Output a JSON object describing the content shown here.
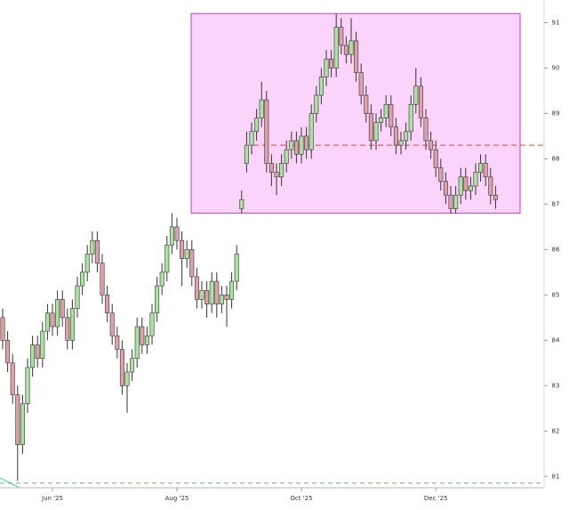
{
  "chart_data": {
    "type": "candlestick",
    "categories": [
      null,
      null,
      null,
      null,
      null,
      null,
      null,
      null,
      null,
      null,
      "Jun '25",
      null,
      null,
      null,
      null,
      null,
      null,
      null,
      null,
      null,
      null,
      null,
      null,
      null,
      null,
      null,
      null,
      null,
      null,
      null,
      null,
      null,
      null,
      null,
      null,
      "Aug '25",
      null,
      null,
      null,
      null,
      null,
      null,
      null,
      null,
      null,
      null,
      null,
      null,
      null,
      null,
      null,
      null,
      null,
      null,
      null,
      null,
      null,
      null,
      null,
      null,
      "Oct '25",
      null,
      null,
      null,
      null,
      null,
      null,
      null,
      null,
      null,
      null,
      null,
      null,
      null,
      null,
      null,
      null,
      null,
      null,
      null,
      null,
      null,
      null,
      null,
      null,
      null,
      null,
      "Dec '25",
      null,
      null,
      null,
      null,
      null,
      null,
      null,
      null,
      null,
      null,
      null,
      null
    ],
    "open": [
      84.5,
      84.0,
      83.5,
      82.8,
      81.7,
      82.6,
      83.4,
      83.9,
      83.6,
      84.2,
      84.6,
      84.3,
      84.9,
      84.5,
      84.0,
      84.7,
      85.2,
      85.5,
      85.9,
      86.2,
      85.7,
      85.0,
      84.6,
      84.1,
      83.8,
      83.0,
      83.3,
      83.6,
      84.3,
      83.9,
      84.1,
      84.6,
      85.2,
      85.5,
      86.1,
      86.5,
      86.2,
      85.8,
      86.0,
      85.4,
      84.9,
      85.1,
      84.8,
      85.3,
      84.8,
      85.0,
      84.9,
      85.3,
      86.9,
      87.9,
      88.3,
      88.6,
      88.9,
      89.3,
      87.9,
      87.7,
      87.6,
      87.9,
      88.2,
      88.4,
      88.1,
      88.5,
      88.2,
      89.0,
      89.4,
      89.8,
      90.2,
      90.0,
      90.9,
      90.5,
      90.3,
      90.6,
      89.9,
      89.4,
      89.0,
      88.4,
      88.8,
      88.9,
      89.2,
      88.7,
      88.3,
      88.4,
      88.6,
      89.2,
      89.6,
      88.9,
      88.4,
      88.2,
      87.8,
      87.5,
      87.2,
      86.9,
      87.2,
      87.6,
      87.3,
      87.4,
      87.7,
      87.9,
      87.6,
      87.2
    ],
    "high": [
      84.7,
      84.2,
      83.7,
      83.0,
      82.8,
      83.6,
      84.1,
      84.1,
      84.4,
      84.8,
      84.8,
      85.1,
      85.1,
      84.7,
      84.9,
      85.4,
      85.7,
      86.1,
      86.4,
      86.4,
      85.9,
      85.2,
      84.8,
      84.3,
      84.0,
      83.5,
      83.8,
      84.5,
      84.5,
      84.3,
      84.8,
      85.4,
      85.7,
      86.3,
      86.8,
      86.7,
      86.4,
      86.2,
      86.2,
      85.6,
      85.3,
      85.3,
      85.5,
      85.5,
      85.2,
      85.2,
      85.5,
      86.1,
      87.3,
      88.6,
      88.8,
      89.1,
      89.7,
      89.5,
      88.1,
      87.9,
      88.1,
      88.4,
      88.6,
      88.6,
      88.7,
      88.7,
      89.2,
      89.6,
      90.0,
      90.4,
      90.4,
      91.2,
      91.1,
      90.7,
      91.1,
      90.8,
      90.1,
      89.6,
      89.2,
      89.0,
      89.1,
      89.4,
      89.4,
      88.9,
      88.6,
      88.8,
      89.4,
      90.0,
      89.8,
      89.1,
      88.6,
      88.4,
      88.0,
      87.7,
      87.4,
      87.4,
      87.8,
      87.8,
      87.6,
      87.9,
      88.1,
      88.1,
      87.8,
      87.4
    ],
    "low": [
      83.8,
      83.3,
      82.6,
      80.9,
      81.5,
      82.4,
      83.2,
      83.4,
      83.4,
      84.0,
      84.1,
      84.1,
      84.3,
      83.8,
      83.8,
      84.5,
      85.0,
      85.3,
      85.7,
      85.5,
      84.8,
      84.4,
      83.9,
      83.6,
      82.8,
      82.4,
      83.1,
      83.4,
      83.7,
      83.7,
      83.9,
      84.4,
      85.0,
      85.3,
      85.9,
      86.0,
      85.2,
      85.6,
      85.2,
      84.7,
      84.7,
      84.5,
      84.6,
      84.5,
      84.6,
      84.3,
      84.7,
      85.1,
      86.8,
      87.7,
      88.1,
      88.4,
      88.7,
      87.7,
      87.4,
      87.2,
      87.4,
      87.7,
      88.0,
      87.9,
      87.9,
      88.0,
      88.0,
      88.8,
      89.2,
      89.6,
      89.8,
      89.8,
      90.3,
      90.1,
      90.1,
      89.7,
      89.2,
      88.8,
      88.2,
      88.2,
      88.6,
      88.7,
      88.5,
      88.1,
      88.1,
      88.2,
      88.4,
      89.0,
      88.7,
      88.2,
      88.0,
      87.6,
      87.3,
      87.0,
      86.8,
      86.8,
      87.0,
      87.1,
      87.1,
      87.2,
      87.5,
      87.4,
      87.0,
      86.9
    ],
    "close": [
      84.0,
      83.5,
      82.8,
      81.7,
      82.6,
      83.4,
      83.9,
      83.6,
      84.2,
      84.6,
      84.3,
      84.9,
      84.5,
      84.0,
      84.7,
      85.2,
      85.5,
      85.9,
      86.2,
      85.7,
      85.0,
      84.6,
      84.1,
      83.8,
      83.0,
      83.3,
      83.6,
      84.3,
      83.9,
      84.1,
      84.6,
      85.2,
      85.5,
      86.1,
      86.5,
      86.2,
      85.8,
      86.0,
      85.4,
      84.9,
      85.1,
      84.8,
      85.3,
      84.8,
      85.0,
      84.9,
      85.3,
      85.9,
      87.1,
      88.3,
      88.6,
      88.9,
      89.3,
      87.9,
      87.7,
      87.6,
      87.9,
      88.2,
      88.4,
      88.1,
      88.5,
      88.2,
      89.0,
      89.4,
      89.8,
      90.2,
      90.0,
      90.9,
      90.5,
      90.3,
      90.6,
      89.9,
      89.4,
      89.0,
      88.4,
      88.8,
      88.9,
      89.2,
      88.7,
      88.3,
      88.4,
      88.6,
      89.2,
      89.6,
      88.9,
      88.4,
      88.2,
      87.8,
      87.5,
      87.2,
      86.9,
      87.2,
      87.6,
      87.3,
      87.4,
      87.7,
      87.9,
      87.6,
      87.2,
      87.1
    ],
    "up_color": "#a8e4a0",
    "down_color": "#dfa0a8",
    "ylim": [
      80.75,
      91.5
    ],
    "yticks": [
      81,
      82,
      83,
      84,
      85,
      86,
      87,
      88,
      89,
      90,
      91
    ],
    "highlight_box": {
      "low": 86.8,
      "high": 91.2,
      "color": "#fad4fa"
    },
    "resistance_line": {
      "value": 88.3,
      "color": "#e04040"
    },
    "support_line": {
      "value": 80.85,
      "color": "#66bb66"
    }
  }
}
